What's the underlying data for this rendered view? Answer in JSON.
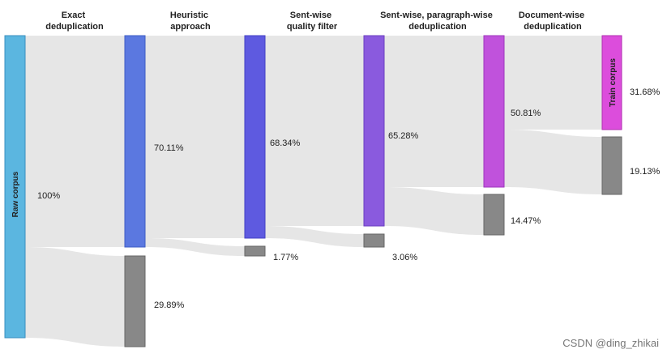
{
  "stages": [
    {
      "id": "exact",
      "lines": [
        "Exact",
        "deduplication"
      ]
    },
    {
      "id": "heuristic",
      "lines": [
        "Heuristic",
        "approach"
      ]
    },
    {
      "id": "sentwise",
      "lines": [
        "Sent-wise",
        "quality filter"
      ]
    },
    {
      "id": "paragraph",
      "lines": [
        "Sent-wise, paragraph-wise",
        "deduplication"
      ]
    },
    {
      "id": "document",
      "lines": [
        "Document-wise",
        "deduplication"
      ]
    }
  ],
  "nodes": {
    "raw": {
      "label": "Raw corpus",
      "pct_label": "100%",
      "value": 100,
      "color": "#5bb6e0"
    },
    "h_keep": {
      "pct_label": "70.11%",
      "value": 70.11,
      "color": "#5b78e0"
    },
    "h_drop": {
      "pct_label": "29.89%",
      "value": 29.89,
      "color": "#888888"
    },
    "s_keep": {
      "pct_label": "68.34%",
      "value": 68.34,
      "color": "#5e5ae0"
    },
    "s_drop": {
      "pct_label": "1.77%",
      "value": 1.77,
      "color": "#888888"
    },
    "p_keep": {
      "pct_label": "65.28%",
      "value": 65.28,
      "color": "#8a5ade"
    },
    "p_drop": {
      "pct_label": "3.06%",
      "value": 3.06,
      "color": "#888888"
    },
    "d_keep": {
      "pct_label": "50.81%",
      "value": 50.81,
      "color": "#c052dc"
    },
    "d_drop": {
      "pct_label": "14.47%",
      "value": 14.47,
      "color": "#888888"
    },
    "train": {
      "label": "Train corpus",
      "pct_label": "31.68%",
      "value": 31.68,
      "color": "#dc4ddc"
    },
    "t_drop": {
      "pct_label": "19.13%",
      "value": 19.13,
      "color": "#888888"
    }
  },
  "watermark": "CSDN @ding_zhikai"
}
